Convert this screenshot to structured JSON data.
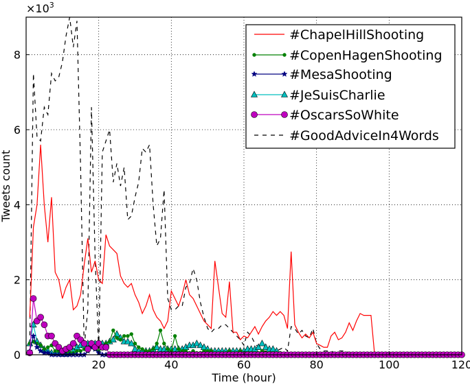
{
  "chart_data": {
    "type": "line",
    "xlabel": "Time (hour)",
    "ylabel": "Tweets count",
    "y_multiplier": "×10",
    "y_multiplier_exp": "3",
    "xlim": [
      0,
      120
    ],
    "ylim": [
      0,
      9
    ],
    "xticks": [
      "20",
      "40",
      "60",
      "80",
      "100",
      "120"
    ],
    "yticks": [
      "0",
      "2",
      "4",
      "6",
      "8"
    ],
    "grid": true,
    "legend_position": "top-right",
    "x_start": 1,
    "series": [
      {
        "name": "#ChapelHillShooting",
        "color": "#ff0000",
        "dash": "solid",
        "marker": "none",
        "values": [
          1.0,
          3.4,
          4.0,
          5.6,
          4.0,
          3.0,
          4.2,
          2.2,
          2.0,
          1.5,
          1.8,
          2.0,
          1.2,
          1.3,
          1.6,
          2.4,
          3.1,
          2.2,
          2.5,
          2.0,
          1.9,
          3.2,
          2.9,
          2.8,
          2.7,
          2.1,
          1.9,
          1.8,
          1.9,
          1.6,
          1.4,
          1.1,
          1.3,
          1.6,
          1.2,
          1.0,
          0.9,
          0.7,
          0.9,
          1.7,
          1.5,
          1.3,
          1.6,
          2.0,
          1.6,
          1.5,
          1.3,
          1.1,
          0.9,
          0.8,
          0.7,
          2.5,
          1.8,
          1.1,
          1.0,
          1.95,
          0.6,
          0.6,
          0.4,
          0.5,
          0.45,
          0.6,
          0.75,
          0.55,
          0.75,
          0.9,
          1.0,
          1.15,
          1.05,
          1.15,
          1.05,
          0.7,
          2.75,
          0.8,
          0.6,
          0.45,
          0.55,
          0.45,
          0.6,
          0.3,
          0.25,
          0.2,
          0.2,
          0.5,
          0.6,
          0.4,
          0.45,
          0.6,
          0.85,
          0.65,
          0.9,
          1.1,
          1.05,
          1.05,
          1.05,
          0.0
        ]
      },
      {
        "name": "#CopenHagenShooting",
        "color": "#008000",
        "dash": "solid",
        "marker": "dot",
        "values": [
          0.3,
          0.35,
          0.3,
          0.25,
          0.15,
          0.2,
          0.25,
          0.1,
          0.1,
          0.05,
          0.05,
          0.05,
          0.05,
          0.1,
          0.1,
          0.15,
          0.1,
          0.2,
          0.15,
          0.1,
          0.2,
          0.3,
          0.35,
          0.65,
          0.45,
          0.4,
          0.5,
          0.5,
          0.55,
          0.3,
          0.2,
          0.15,
          0.1,
          0.1,
          0.15,
          0.3,
          0.65,
          0.3,
          0.15,
          0.1,
          0.5,
          0.15,
          0.1,
          0.1,
          0.05,
          0.1,
          0.05,
          0.05,
          0.1,
          0.1,
          0.1,
          0.05,
          0.05,
          0.05,
          0.05,
          0.1,
          0.05,
          0.05,
          0.1,
          0.05,
          0.05,
          0.05,
          0.05,
          0.05,
          0.1,
          0.05,
          0.05,
          0.05,
          0.05,
          0.05
        ]
      },
      {
        "name": "#MesaShooting",
        "color": "#000080",
        "dash": "solid",
        "marker": "star",
        "values": [
          0.1,
          0.5,
          0.2,
          0.1,
          0.05,
          0.05,
          0,
          0,
          0,
          0,
          0,
          0,
          0,
          0,
          0,
          0,
          0.1,
          0.2,
          0.15,
          0.05,
          0,
          0
        ]
      },
      {
        "name": "#JeSuisCharlie",
        "color": "#00bfbf",
        "dash": "solid",
        "marker": "triangle",
        "values": [
          0.3,
          0.8,
          0.35,
          0.25,
          0.15,
          0.1,
          0.05,
          0.05,
          0.05,
          0.02,
          0.02,
          0.05,
          0.1,
          0.2,
          0.25,
          0.25,
          0.3,
          0.3,
          0.3,
          0.3,
          0.3,
          0.3,
          0.35,
          0.4,
          0.55,
          0.45,
          0.35,
          0.35,
          0.3,
          0.15,
          0.1,
          0.1,
          0.1,
          0.1,
          0.15,
          0.2,
          0.15,
          0.15,
          0.15,
          0.15,
          0.15,
          0.15,
          0.15,
          0.2,
          0.25,
          0.25,
          0.3,
          0.25,
          0.2,
          0.15,
          0.1,
          0.1,
          0.1,
          0.1,
          0.1,
          0.1,
          0.1,
          0.1,
          0.1,
          0.1,
          0.15,
          0.15,
          0.15,
          0.2,
          0.3,
          0.2,
          0.15,
          0.15,
          0.1
        ]
      },
      {
        "name": "#OscarsSoWhite",
        "color": "#bf00bf",
        "dash": "solid",
        "marker": "circle",
        "values": [
          0.05,
          1.5,
          0.9,
          1.0,
          0.8,
          0.5,
          0.5,
          0.3,
          0.2,
          0.1,
          0.15,
          0.2,
          0.3,
          0.5,
          0.4,
          0.3,
          0.15,
          0.3,
          0.2,
          0.3,
          0.2,
          0.2,
          0,
          0,
          0,
          0,
          0,
          0,
          0,
          0,
          0,
          0,
          0,
          0,
          0,
          0,
          0,
          0,
          0,
          0,
          0,
          0,
          0,
          0,
          0,
          0,
          0,
          0,
          0,
          0,
          0,
          0,
          0,
          0,
          0,
          0,
          0,
          0,
          0,
          0,
          0,
          0,
          0,
          0,
          0,
          0,
          0,
          0,
          0,
          0,
          0,
          0,
          0,
          0,
          0,
          0,
          0,
          0,
          0,
          0,
          0,
          0,
          0,
          0,
          0,
          0,
          0,
          0,
          0,
          0,
          0,
          0,
          0,
          0,
          0,
          0,
          0,
          0,
          0,
          0,
          0,
          0,
          0,
          0,
          0,
          0,
          0,
          0,
          0,
          0,
          0,
          0,
          0,
          0,
          0,
          0,
          0,
          0,
          0,
          0
        ]
      },
      {
        "name": "#GoodAdviceIn4Words",
        "color": "#000000",
        "dash": "dashed",
        "marker": "none",
        "values": [
          0.3,
          7.5,
          5.8,
          5.7,
          6.6,
          6.4,
          7.5,
          7.3,
          7.4,
          7.8,
          8.5,
          9.0,
          8.2,
          8.9,
          5.0,
          0.2,
          1.2,
          6.6,
          2.6,
          0.1,
          5.4,
          5.7,
          6.0,
          4.6,
          5.1,
          4.5,
          5.0,
          3.6,
          3.7,
          4.2,
          4.6,
          5.5,
          5.4,
          5.6,
          4.0,
          2.9,
          3.1,
          4.4,
          1.5,
          1.2,
          1.2,
          1.3,
          1.3,
          1.8,
          1.9,
          2.3,
          2.0,
          1.4,
          1.0,
          0.7,
          0.6,
          0.7,
          0.7,
          0.8,
          0.8,
          0.7,
          0.6,
          0.5,
          0.4,
          0.25,
          0.6,
          0.5,
          0.3,
          0.2,
          0.1,
          0.1,
          0.1,
          0.1,
          0.1,
          0.15,
          0.2,
          0.1,
          0.75,
          0.7,
          0.55,
          0.65,
          0.5,
          0.45,
          0.7,
          0.3,
          0.15,
          0.1,
          0.1,
          0.1,
          0.05,
          0.1,
          0.1,
          0.1,
          0.05,
          0.05,
          0,
          0,
          0.05,
          0.05,
          0,
          0.05,
          0.05,
          0,
          0,
          0,
          0.05,
          0.05,
          0,
          0.05,
          0.05,
          0,
          0,
          0,
          0,
          0,
          0,
          0,
          0,
          0,
          0,
          0,
          0,
          0,
          0,
          0
        ]
      }
    ]
  }
}
